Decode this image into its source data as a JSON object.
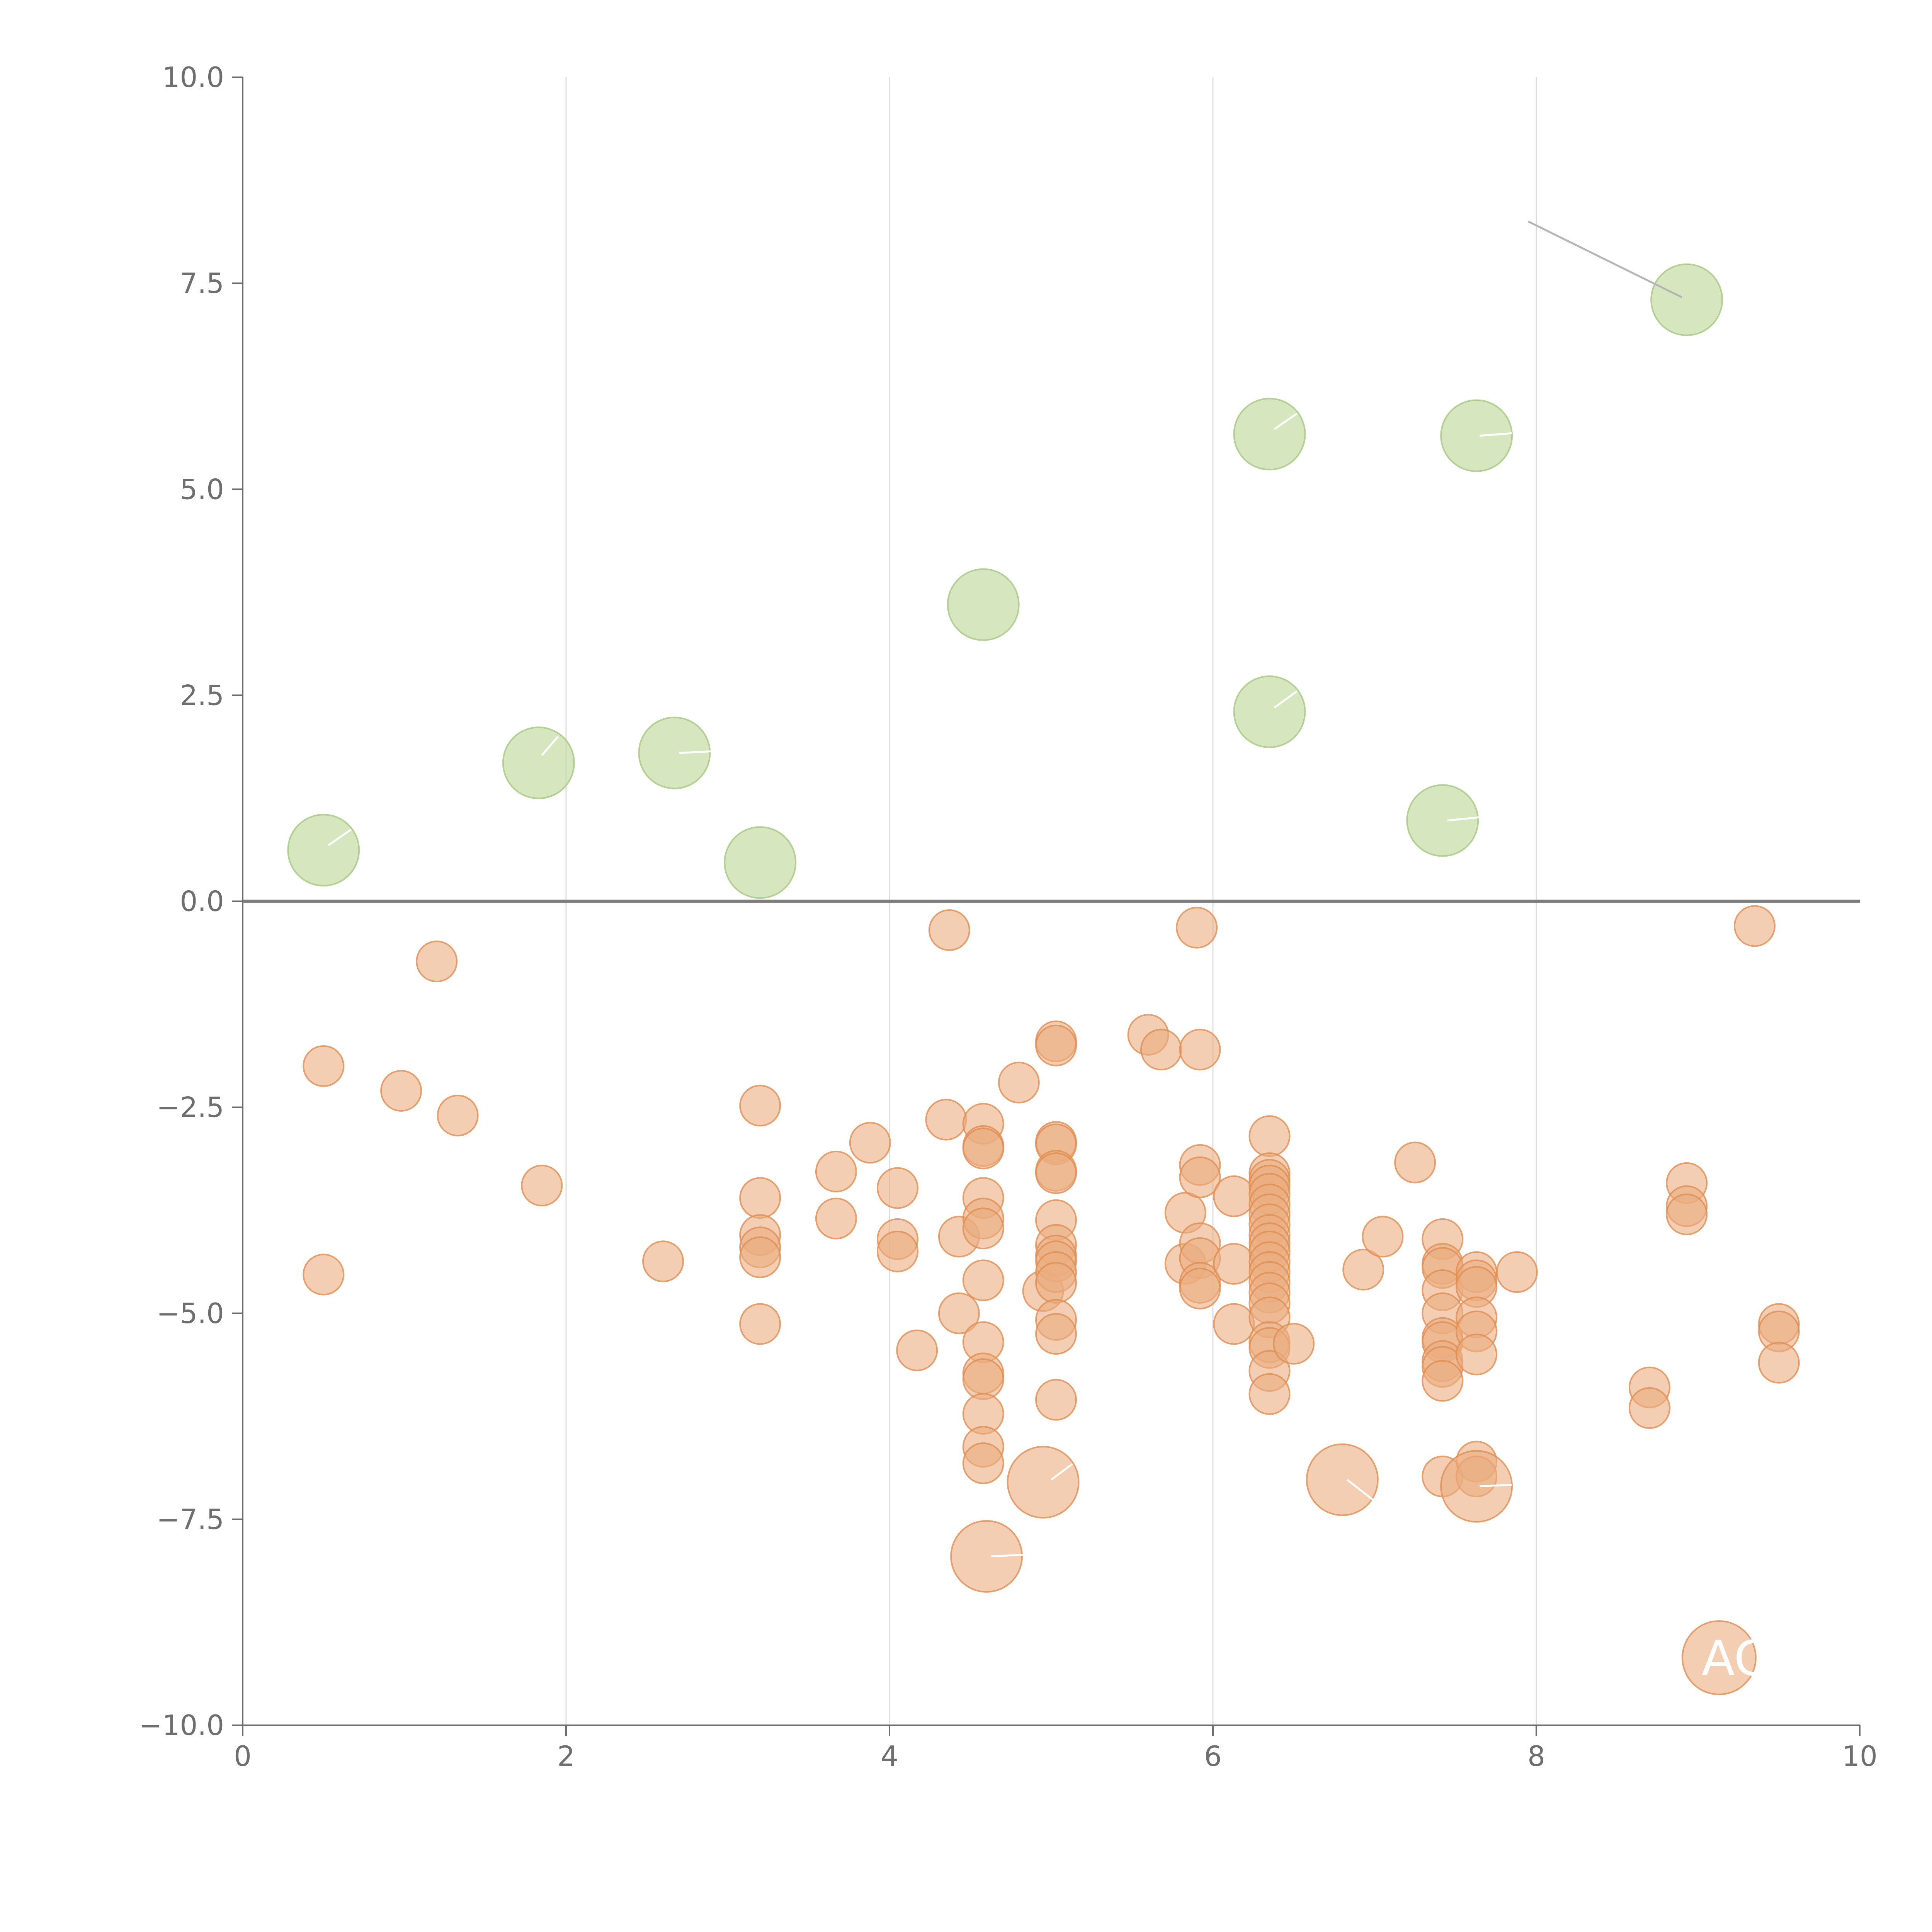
{
  "chart_data": {
    "type": "scatter",
    "title": "",
    "xlabel": "",
    "ylabel": "",
    "xlim": [
      0,
      10
    ],
    "ylim": [
      -10,
      10
    ],
    "x_ticks": [
      "0",
      "2",
      "4",
      "6",
      "8",
      "10"
    ],
    "y_ticks": [
      "10.0",
      "7.5",
      "5.0",
      "2.5",
      "0.0",
      "−2.5",
      "−5.0",
      "−7.5",
      "−10.0"
    ],
    "grid": "vertical",
    "zero_line": 0,
    "colors": {
      "positive": "#c5dca3",
      "negative": "#ebad7f",
      "positive_edge": "#a6c783",
      "negative_edge": "#de8d52"
    },
    "series": [
      {
        "name": "positive",
        "points": [
          {
            "x": 0.5,
            "y": 0.62,
            "size": "large"
          },
          {
            "x": 1.83,
            "y": 1.68,
            "size": "large"
          },
          {
            "x": 2.67,
            "y": 1.8,
            "size": "large"
          },
          {
            "x": 3.2,
            "y": 0.47,
            "size": "large"
          },
          {
            "x": 4.58,
            "y": 3.6,
            "size": "large"
          },
          {
            "x": 6.35,
            "y": 5.67,
            "size": "large"
          },
          {
            "x": 6.35,
            "y": 2.3,
            "size": "large"
          },
          {
            "x": 7.63,
            "y": 5.65,
            "size": "large"
          },
          {
            "x": 7.42,
            "y": 0.98,
            "size": "large"
          },
          {
            "x": 8.93,
            "y": 7.3,
            "size": "large"
          }
        ]
      },
      {
        "name": "negative",
        "points": [
          {
            "x": 0.5,
            "y": -2.0,
            "size": "small"
          },
          {
            "x": 0.5,
            "y": -4.53,
            "size": "small"
          },
          {
            "x": 0.98,
            "y": -2.3,
            "size": "small"
          },
          {
            "x": 1.2,
            "y": -0.73,
            "size": "small"
          },
          {
            "x": 1.33,
            "y": -2.6,
            "size": "small"
          },
          {
            "x": 1.85,
            "y": -3.45,
            "size": "small"
          },
          {
            "x": 2.6,
            "y": -4.37,
            "size": "small"
          },
          {
            "x": 3.2,
            "y": -2.48,
            "size": "small"
          },
          {
            "x": 3.2,
            "y": -3.6,
            "size": "small"
          },
          {
            "x": 3.2,
            "y": -4.05,
            "size": "small"
          },
          {
            "x": 3.2,
            "y": -4.2,
            "size": "small"
          },
          {
            "x": 3.2,
            "y": -4.32,
            "size": "small"
          },
          {
            "x": 3.2,
            "y": -5.13,
            "size": "small"
          },
          {
            "x": 3.67,
            "y": -3.28,
            "size": "small"
          },
          {
            "x": 3.67,
            "y": -3.85,
            "size": "small"
          },
          {
            "x": 3.88,
            "y": -2.93,
            "size": "small"
          },
          {
            "x": 4.05,
            "y": -3.48,
            "size": "small"
          },
          {
            "x": 4.05,
            "y": -4.1,
            "size": "small"
          },
          {
            "x": 4.05,
            "y": -4.25,
            "size": "small"
          },
          {
            "x": 4.17,
            "y": -5.45,
            "size": "small"
          },
          {
            "x": 4.35,
            "y": -2.65,
            "size": "small"
          },
          {
            "x": 4.37,
            "y": -0.35,
            "size": "small"
          },
          {
            "x": 4.43,
            "y": -4.07,
            "size": "small"
          },
          {
            "x": 4.43,
            "y": -5.0,
            "size": "small"
          },
          {
            "x": 4.58,
            "y": -2.7,
            "size": "small"
          },
          {
            "x": 4.58,
            "y": -2.97,
            "size": "small"
          },
          {
            "x": 4.58,
            "y": -3.0,
            "size": "small"
          },
          {
            "x": 4.58,
            "y": -3.6,
            "size": "small"
          },
          {
            "x": 4.58,
            "y": -3.85,
            "size": "small"
          },
          {
            "x": 4.58,
            "y": -3.97,
            "size": "small"
          },
          {
            "x": 4.58,
            "y": -4.6,
            "size": "small"
          },
          {
            "x": 4.58,
            "y": -5.35,
            "size": "small"
          },
          {
            "x": 4.58,
            "y": -5.73,
            "size": "small"
          },
          {
            "x": 4.58,
            "y": -5.8,
            "size": "small"
          },
          {
            "x": 4.58,
            "y": -6.22,
            "size": "small"
          },
          {
            "x": 4.58,
            "y": -6.62,
            "size": "small"
          },
          {
            "x": 4.58,
            "y": -6.82,
            "size": "small"
          },
          {
            "x": 4.8,
            "y": -2.2,
            "size": "small"
          },
          {
            "x": 4.95,
            "y": -4.73,
            "size": "small"
          },
          {
            "x": 5.03,
            "y": -1.7,
            "size": "small"
          },
          {
            "x": 5.03,
            "y": -1.75,
            "size": "small"
          },
          {
            "x": 5.03,
            "y": -2.92,
            "size": "small"
          },
          {
            "x": 5.03,
            "y": -2.95,
            "size": "small"
          },
          {
            "x": 5.03,
            "y": -3.27,
            "size": "small"
          },
          {
            "x": 5.03,
            "y": -3.3,
            "size": "small"
          },
          {
            "x": 5.03,
            "y": -3.87,
            "size": "small"
          },
          {
            "x": 5.03,
            "y": -4.17,
            "size": "small"
          },
          {
            "x": 5.03,
            "y": -4.3,
            "size": "small"
          },
          {
            "x": 5.03,
            "y": -4.37,
            "size": "small"
          },
          {
            "x": 5.03,
            "y": -4.5,
            "size": "small"
          },
          {
            "x": 5.03,
            "y": -4.63,
            "size": "small"
          },
          {
            "x": 5.03,
            "y": -5.08,
            "size": "small"
          },
          {
            "x": 5.03,
            "y": -5.25,
            "size": "small"
          },
          {
            "x": 5.03,
            "y": -6.05,
            "size": "small"
          },
          {
            "x": 5.6,
            "y": -1.62,
            "size": "small"
          },
          {
            "x": 5.68,
            "y": -1.8,
            "size": "small"
          },
          {
            "x": 5.83,
            "y": -3.78,
            "size": "small"
          },
          {
            "x": 5.83,
            "y": -4.4,
            "size": "small"
          },
          {
            "x": 5.9,
            "y": -0.32,
            "size": "small"
          },
          {
            "x": 5.92,
            "y": -1.8,
            "size": "small"
          },
          {
            "x": 5.92,
            "y": -3.2,
            "size": "small"
          },
          {
            "x": 5.92,
            "y": -3.35,
            "size": "small"
          },
          {
            "x": 5.92,
            "y": -4.15,
            "size": "small"
          },
          {
            "x": 5.92,
            "y": -4.33,
            "size": "small"
          },
          {
            "x": 5.92,
            "y": -4.63,
            "size": "small"
          },
          {
            "x": 5.92,
            "y": -4.7,
            "size": "small"
          },
          {
            "x": 6.13,
            "y": -3.58,
            "size": "small"
          },
          {
            "x": 6.13,
            "y": -4.4,
            "size": "small"
          },
          {
            "x": 6.13,
            "y": -5.13,
            "size": "small"
          },
          {
            "x": 6.35,
            "y": -2.85,
            "size": "small"
          },
          {
            "x": 6.35,
            "y": -3.3,
            "size": "small"
          },
          {
            "x": 6.35,
            "y": -3.38,
            "size": "small"
          },
          {
            "x": 6.35,
            "y": -3.45,
            "size": "small"
          },
          {
            "x": 6.35,
            "y": -3.55,
            "size": "small"
          },
          {
            "x": 6.35,
            "y": -3.68,
            "size": "small"
          },
          {
            "x": 6.35,
            "y": -3.8,
            "size": "small"
          },
          {
            "x": 6.35,
            "y": -3.92,
            "size": "small"
          },
          {
            "x": 6.35,
            "y": -4.05,
            "size": "small"
          },
          {
            "x": 6.35,
            "y": -4.15,
            "size": "small"
          },
          {
            "x": 6.35,
            "y": -4.25,
            "size": "small"
          },
          {
            "x": 6.35,
            "y": -4.38,
            "size": "small"
          },
          {
            "x": 6.35,
            "y": -4.5,
            "size": "small"
          },
          {
            "x": 6.35,
            "y": -4.62,
            "size": "small"
          },
          {
            "x": 6.35,
            "y": -4.75,
            "size": "small"
          },
          {
            "x": 6.35,
            "y": -4.88,
            "size": "small"
          },
          {
            "x": 6.35,
            "y": -5.05,
            "size": "small"
          },
          {
            "x": 6.35,
            "y": -5.35,
            "size": "small"
          },
          {
            "x": 6.35,
            "y": -5.42,
            "size": "small"
          },
          {
            "x": 6.35,
            "y": -5.7,
            "size": "small"
          },
          {
            "x": 6.35,
            "y": -5.98,
            "size": "small"
          },
          {
            "x": 6.5,
            "y": -5.37,
            "size": "small"
          },
          {
            "x": 6.93,
            "y": -4.47,
            "size": "small"
          },
          {
            "x": 7.05,
            "y": -4.07,
            "size": "small"
          },
          {
            "x": 7.25,
            "y": -3.17,
            "size": "small"
          },
          {
            "x": 7.42,
            "y": -4.1,
            "size": "small"
          },
          {
            "x": 7.42,
            "y": -4.4,
            "size": "small"
          },
          {
            "x": 7.42,
            "y": -4.45,
            "size": "small"
          },
          {
            "x": 7.42,
            "y": -4.72,
            "size": "small"
          },
          {
            "x": 7.42,
            "y": -5.0,
            "size": "small"
          },
          {
            "x": 7.42,
            "y": -5.3,
            "size": "small"
          },
          {
            "x": 7.42,
            "y": -5.35,
            "size": "small"
          },
          {
            "x": 7.42,
            "y": -5.58,
            "size": "small"
          },
          {
            "x": 7.42,
            "y": -5.65,
            "size": "small"
          },
          {
            "x": 7.42,
            "y": -5.82,
            "size": "small"
          },
          {
            "x": 7.42,
            "y": -6.98,
            "size": "small"
          },
          {
            "x": 7.63,
            "y": -4.5,
            "size": "small"
          },
          {
            "x": 7.63,
            "y": -4.6,
            "size": "small"
          },
          {
            "x": 7.63,
            "y": -4.68,
            "size": "small"
          },
          {
            "x": 7.63,
            "y": -5.05,
            "size": "small"
          },
          {
            "x": 7.63,
            "y": -5.22,
            "size": "small"
          },
          {
            "x": 7.63,
            "y": -5.5,
            "size": "small"
          },
          {
            "x": 7.63,
            "y": -6.8,
            "size": "small"
          },
          {
            "x": 7.63,
            "y": -6.98,
            "size": "small"
          },
          {
            "x": 7.88,
            "y": -4.5,
            "size": "small"
          },
          {
            "x": 8.7,
            "y": -5.9,
            "size": "small"
          },
          {
            "x": 8.7,
            "y": -6.15,
            "size": "small"
          },
          {
            "x": 8.93,
            "y": -3.42,
            "size": "small"
          },
          {
            "x": 8.93,
            "y": -3.7,
            "size": "small"
          },
          {
            "x": 8.93,
            "y": -3.8,
            "size": "small"
          },
          {
            "x": 9.35,
            "y": -0.3,
            "size": "small"
          },
          {
            "x": 9.5,
            "y": -5.13,
            "size": "small"
          },
          {
            "x": 9.5,
            "y": -5.22,
            "size": "small"
          },
          {
            "x": 9.5,
            "y": -5.6,
            "size": "small"
          },
          {
            "x": 4.95,
            "y": -7.05,
            "size": "large"
          },
          {
            "x": 6.8,
            "y": -7.02,
            "size": "large"
          },
          {
            "x": 7.63,
            "y": -7.1,
            "size": "large"
          },
          {
            "x": 4.6,
            "y": -7.95,
            "size": "large"
          },
          {
            "x": 9.13,
            "y": -9.18,
            "size": "medium"
          }
        ]
      }
    ],
    "annotations": [
      {
        "text": "AC",
        "x": 9.13,
        "y": -9.18
      }
    ],
    "connectors": [
      {
        "from": [
          7.95,
          8.25
        ],
        "to": [
          8.9,
          7.33
        ],
        "color": "#b5b5b5"
      },
      {
        "from": [
          0.53,
          0.68
        ],
        "to": [
          0.67,
          0.87
        ],
        "color": "#ffffff"
      },
      {
        "from": [
          1.85,
          1.77
        ],
        "to": [
          1.95,
          2.0
        ],
        "color": "#ffffff"
      },
      {
        "from": [
          2.7,
          1.8
        ],
        "to": [
          2.9,
          1.82
        ],
        "color": "#ffffff"
      },
      {
        "from": [
          6.38,
          5.73
        ],
        "to": [
          6.52,
          5.92
        ],
        "color": "#ffffff"
      },
      {
        "from": [
          6.38,
          2.35
        ],
        "to": [
          6.52,
          2.55
        ],
        "color": "#ffffff"
      },
      {
        "from": [
          7.65,
          5.65
        ],
        "to": [
          7.85,
          5.68
        ],
        "color": "#ffffff"
      },
      {
        "from": [
          7.45,
          0.98
        ],
        "to": [
          7.65,
          1.02
        ],
        "color": "#ffffff"
      },
      {
        "from": [
          5.0,
          -7.02
        ],
        "to": [
          5.13,
          -6.83
        ],
        "color": "#ffffff"
      },
      {
        "from": [
          6.83,
          -7.02
        ],
        "to": [
          7.0,
          -7.28
        ],
        "color": "#ffffff"
      },
      {
        "from": [
          7.65,
          -7.1
        ],
        "to": [
          7.85,
          -7.08
        ],
        "color": "#ffffff"
      },
      {
        "from": [
          4.63,
          -7.95
        ],
        "to": [
          4.83,
          -7.93
        ],
        "color": "#ffffff"
      }
    ]
  }
}
